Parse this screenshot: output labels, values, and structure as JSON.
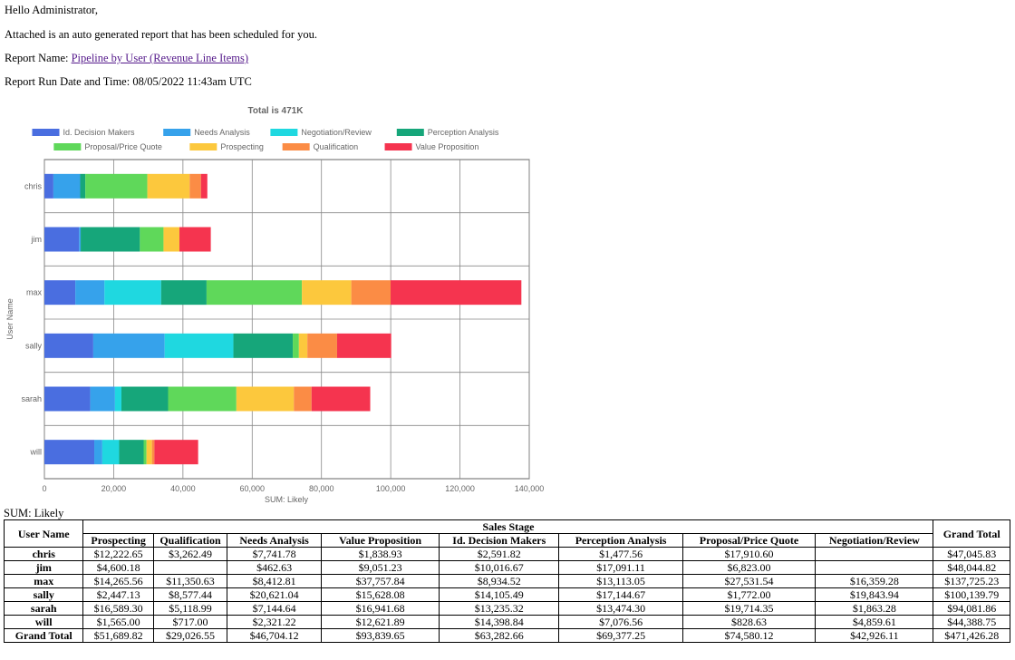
{
  "email": {
    "greeting": "Hello Administrator,",
    "intro": "Attached is an auto generated report that has been scheduled for you.",
    "report_name_label": "Report Name: ",
    "report_name_link": "Pipeline by User (Revenue Line Items)",
    "run_date_text": "Report Run Date and Time: 08/05/2022 11:43am UTC"
  },
  "chart_data": {
    "type": "bar",
    "orientation": "horizontal",
    "stacked": true,
    "title": "Total is 471K",
    "xlabel": "SUM: Likely",
    "ylabel": "User Name",
    "xlim": [
      0,
      140000
    ],
    "xticks": [
      "0",
      "20,000",
      "40,000",
      "60,000",
      "80,000",
      "100,000",
      "120,000",
      "140,000"
    ],
    "grid": true,
    "legend_position": "top",
    "categories": [
      "chris",
      "jim",
      "max",
      "sally",
      "sarah",
      "will"
    ],
    "series": [
      {
        "name": "Id. Decision Makers",
        "color": "#4a6ee0",
        "values": [
          2591.82,
          10016.67,
          8934.52,
          14105.49,
          13235.32,
          14398.84
        ]
      },
      {
        "name": "Needs Analysis",
        "color": "#36a2eb",
        "values": [
          7741.78,
          462.63,
          8412.81,
          20621.04,
          7144.64,
          2321.22
        ]
      },
      {
        "name": "Negotiation/Review",
        "color": "#1fd8e0",
        "values": [
          0,
          0,
          16359.28,
          19843.94,
          1863.28,
          4859.61
        ]
      },
      {
        "name": "Perception Analysis",
        "color": "#16a67a",
        "values": [
          1477.56,
          17091.11,
          13113.05,
          17144.67,
          13474.3,
          7076.56
        ]
      },
      {
        "name": "Proposal/Price Quote",
        "color": "#5fd85a",
        "values": [
          17910.6,
          6823.0,
          27531.54,
          1772.0,
          19714.35,
          828.63
        ]
      },
      {
        "name": "Prospecting",
        "color": "#fcc83d",
        "values": [
          12222.65,
          4600.18,
          14265.56,
          2447.13,
          16589.3,
          1565.0
        ]
      },
      {
        "name": "Qualification",
        "color": "#fb8c45",
        "values": [
          3262.49,
          0,
          11350.63,
          8577.44,
          5118.99,
          717.0
        ]
      },
      {
        "name": "Value Proposition",
        "color": "#f5344f",
        "values": [
          1838.93,
          9051.23,
          37757.84,
          15628.08,
          16941.68,
          12621.89
        ]
      }
    ]
  },
  "table": {
    "sum_label": "SUM: Likely",
    "user_header": "User Name",
    "group_header": "Sales Stage",
    "total_header": "Grand Total",
    "columns": [
      "Prospecting",
      "Qualification",
      "Needs Analysis",
      "Value Proposition",
      "Id. Decision Makers",
      "Perception Analysis",
      "Proposal/Price Quote",
      "Negotiation/Review"
    ],
    "rows": [
      {
        "user": "chris",
        "cells": [
          "$12,222.65",
          "$3,262.49",
          "$7,741.78",
          "$1,838.93",
          "$2,591.82",
          "$1,477.56",
          "$17,910.60",
          ""
        ],
        "total": "$47,045.83"
      },
      {
        "user": "jim",
        "cells": [
          "$4,600.18",
          "",
          "$462.63",
          "$9,051.23",
          "$10,016.67",
          "$17,091.11",
          "$6,823.00",
          ""
        ],
        "total": "$48,044.82"
      },
      {
        "user": "max",
        "cells": [
          "$14,265.56",
          "$11,350.63",
          "$8,412.81",
          "$37,757.84",
          "$8,934.52",
          "$13,113.05",
          "$27,531.54",
          "$16,359.28"
        ],
        "total": "$137,725.23"
      },
      {
        "user": "sally",
        "cells": [
          "$2,447.13",
          "$8,577.44",
          "$20,621.04",
          "$15,628.08",
          "$14,105.49",
          "$17,144.67",
          "$1,772.00",
          "$19,843.94"
        ],
        "total": "$100,139.79"
      },
      {
        "user": "sarah",
        "cells": [
          "$16,589.30",
          "$5,118.99",
          "$7,144.64",
          "$16,941.68",
          "$13,235.32",
          "$13,474.30",
          "$19,714.35",
          "$1,863.28"
        ],
        "total": "$94,081.86"
      },
      {
        "user": "will",
        "cells": [
          "$1,565.00",
          "$717.00",
          "$2,321.22",
          "$12,621.89",
          "$14,398.84",
          "$7,076.56",
          "$828.63",
          "$4,859.61"
        ],
        "total": "$44,388.75"
      }
    ],
    "grand_total": {
      "label": "Grand Total",
      "cells": [
        "$51,689.82",
        "$29,026.55",
        "$46,704.12",
        "$93,839.65",
        "$63,282.66",
        "$69,377.25",
        "$74,580.12",
        "$42,926.11"
      ],
      "total": "$471,426.28"
    }
  }
}
